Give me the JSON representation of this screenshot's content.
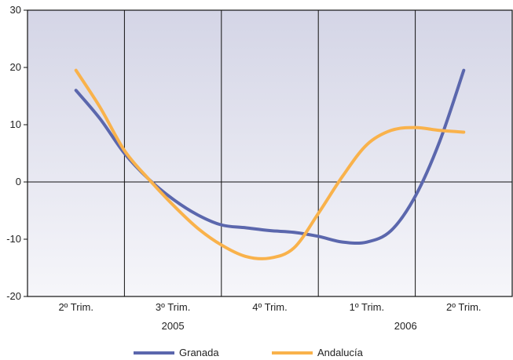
{
  "chart_data": {
    "type": "line",
    "title": "",
    "xlabel": "",
    "ylabel": "",
    "ylim": [
      -20,
      30
    ],
    "yticks": [
      -20,
      -10,
      0,
      10,
      20,
      30
    ],
    "xlim": [
      0,
      5
    ],
    "quarter_ticks": [
      {
        "x": 0.5,
        "label": "2º Trim."
      },
      {
        "x": 1.5,
        "label": "3º Trim."
      },
      {
        "x": 2.5,
        "label": "4º Trim."
      },
      {
        "x": 3.5,
        "label": "1º Trim."
      },
      {
        "x": 4.5,
        "label": "2º Trim."
      }
    ],
    "year_labels": [
      {
        "x": 1.5,
        "label": "2005"
      },
      {
        "x": 3.9,
        "label": "2006"
      }
    ],
    "grid": true,
    "legend_position": "bottom",
    "series": [
      {
        "name": "Granada",
        "color": "#5b67ad",
        "x": [
          0.5,
          0.75,
          1.0,
          1.25,
          1.5,
          1.75,
          2.0,
          2.25,
          2.5,
          2.75,
          3.0,
          3.25,
          3.5,
          3.75,
          4.0,
          4.25,
          4.5
        ],
        "values": [
          16,
          11,
          5,
          0.5,
          -3,
          -5.7,
          -7.5,
          -8,
          -8.5,
          -8.8,
          -9.5,
          -10.5,
          -10.5,
          -8.5,
          -2.5,
          7,
          19.5
        ]
      },
      {
        "name": "Andalucía",
        "color": "#f9b24b",
        "x": [
          0.5,
          0.75,
          1.0,
          1.25,
          1.5,
          1.75,
          2.0,
          2.25,
          2.5,
          2.75,
          3.0,
          3.25,
          3.5,
          3.75,
          4.0,
          4.25,
          4.5
        ],
        "values": [
          19.5,
          13,
          5.5,
          0.5,
          -4,
          -8,
          -11,
          -13,
          -13.3,
          -11.5,
          -5.5,
          1,
          6.5,
          9,
          9.5,
          9,
          8.7
        ]
      }
    ]
  }
}
